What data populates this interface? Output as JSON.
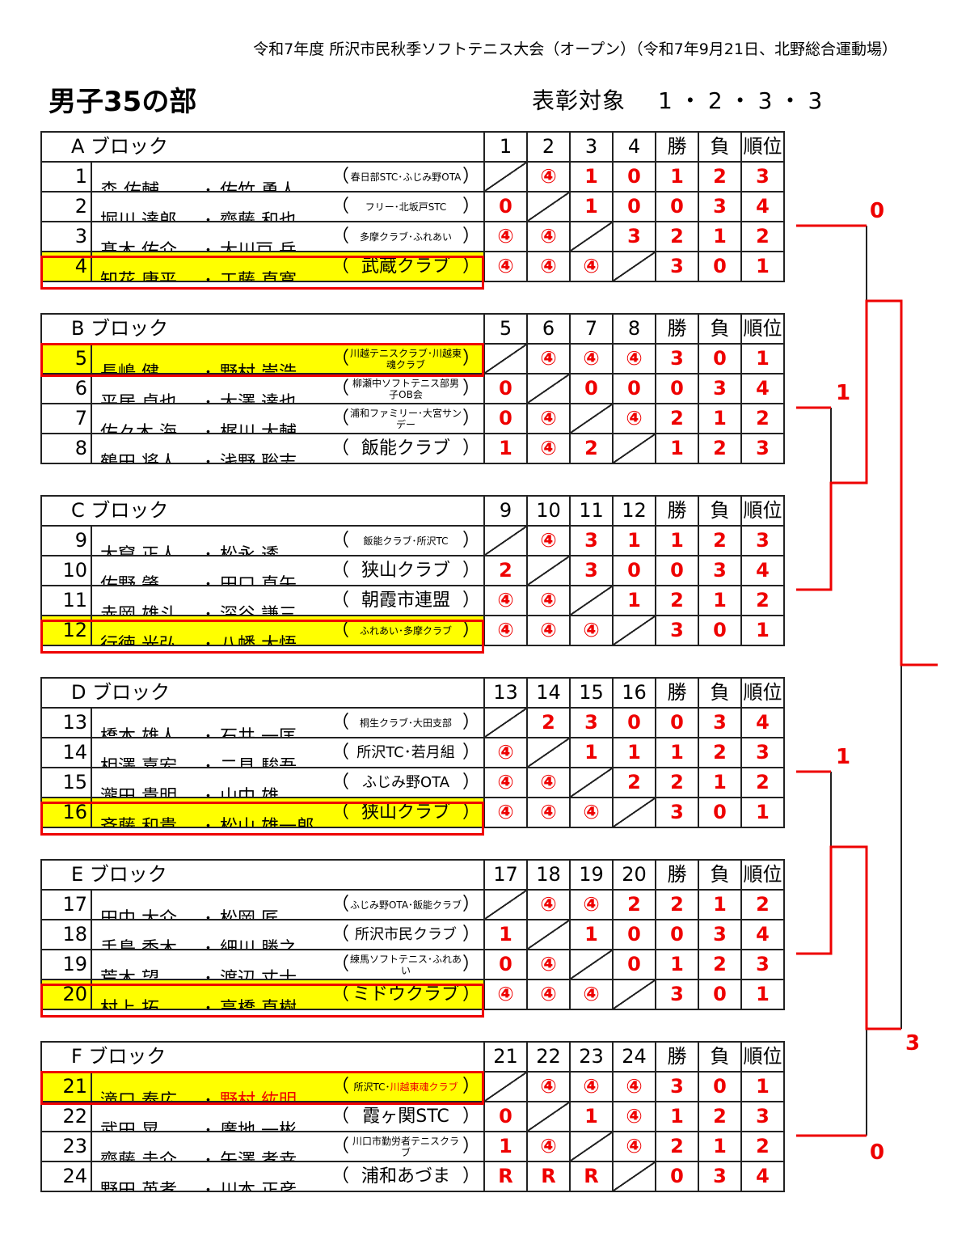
{
  "header": {
    "event": "令和7年度 所沢市民秋季ソフトテニス大会（オープン）（令和7年9月21日、北野総合運動場）",
    "division": "男子35の部",
    "award_label": "表彰対象",
    "award_ranks": "1・2・3・3"
  },
  "columns": {
    "wins": "勝",
    "losses": "負",
    "rank": "順位"
  },
  "colors": {
    "result": "#e00000",
    "highlight_fill": "#ffff00",
    "highlight_border": "#e00000"
  },
  "blocks": [
    {
      "label": "A ブロック",
      "cols": [
        "1",
        "2",
        "3",
        "4"
      ],
      "rows": [
        {
          "no": "1",
          "p1": "森 佑輔",
          "p2": "佐竹 勇人",
          "club": "春日部STC･ふじみ野OTA",
          "results": [
            null,
            "④",
            "1",
            "0"
          ],
          "w": "1",
          "l": "2",
          "rank": "3",
          "hl": false
        },
        {
          "no": "2",
          "p1": "堀川 達郎",
          "p2": "齊藤 和也",
          "club": "フリー･北坂戸STC",
          "results": [
            "0",
            null,
            "1",
            "0"
          ],
          "w": "0",
          "l": "3",
          "rank": "4",
          "hl": false
        },
        {
          "no": "3",
          "p1": "髙木 佑介",
          "p2": "大川戸 岳",
          "club": "多摩クラブ･ふれあい",
          "results": [
            "④",
            "④",
            null,
            "3"
          ],
          "w": "2",
          "l": "1",
          "rank": "2",
          "hl": false
        },
        {
          "no": "4",
          "p1": "知花 康平",
          "p2": "工藤 直寛",
          "club": "武蔵クラブ",
          "results": [
            "④",
            "④",
            "④",
            null
          ],
          "w": "3",
          "l": "0",
          "rank": "1",
          "hl": true
        }
      ]
    },
    {
      "label": "B ブロック",
      "cols": [
        "5",
        "6",
        "7",
        "8"
      ],
      "rows": [
        {
          "no": "5",
          "p1": "長嶋 健",
          "p2": "野村 崇浩",
          "club": "川越テニスクラブ･川越東魂クラブ",
          "results": [
            null,
            "④",
            "④",
            "④"
          ],
          "w": "3",
          "l": "0",
          "rank": "1",
          "hl": true
        },
        {
          "no": "6",
          "p1": "平居 卓也",
          "p2": "大澤 達也",
          "club": "柳瀬中ソフトテニス部男子OB会",
          "results": [
            "0",
            null,
            "0",
            "0"
          ],
          "w": "0",
          "l": "3",
          "rank": "4",
          "hl": false
        },
        {
          "no": "7",
          "p1": "佐々木 海",
          "p2": "梶川 大輔",
          "club": "浦和ファミリー･大宮サンデー",
          "results": [
            "0",
            "④",
            null,
            "④"
          ],
          "w": "2",
          "l": "1",
          "rank": "2",
          "hl": false
        },
        {
          "no": "8",
          "p1": "鶴田 将人",
          "p2": "浅野 聡志",
          "club": "飯能クラブ",
          "results": [
            "1",
            "④",
            "2",
            null
          ],
          "w": "1",
          "l": "2",
          "rank": "3",
          "hl": false
        }
      ]
    },
    {
      "label": "C ブロック",
      "cols": [
        "9",
        "10",
        "11",
        "12"
      ],
      "rows": [
        {
          "no": "9",
          "p1": "大窟 正人",
          "p2": "松永 透",
          "club": "飯能クラブ･所沢TC",
          "results": [
            null,
            "④",
            "3",
            "1"
          ],
          "w": "1",
          "l": "2",
          "rank": "3",
          "hl": false
        },
        {
          "no": "10",
          "p1": "佐野 肇",
          "p2": "田口 直矢",
          "club": "狭山クラブ",
          "results": [
            "2",
            null,
            "3",
            "0"
          ],
          "w": "0",
          "l": "3",
          "rank": "4",
          "hl": false
        },
        {
          "no": "11",
          "p1": "赤岡 雄斗",
          "p2": "深谷 謙三",
          "club": "朝霞市連盟",
          "results": [
            "④",
            "④",
            null,
            "1"
          ],
          "w": "2",
          "l": "1",
          "rank": "2",
          "hl": false
        },
        {
          "no": "12",
          "p1": "行徳 光弘",
          "p2": "八幡 大悟",
          "club": "ふれあい･多摩クラブ",
          "results": [
            "④",
            "④",
            "④",
            null
          ],
          "w": "3",
          "l": "0",
          "rank": "1",
          "hl": true
        }
      ]
    },
    {
      "label": "D ブロック",
      "cols": [
        "13",
        "14",
        "15",
        "16"
      ],
      "rows": [
        {
          "no": "13",
          "p1": "橋本 雄人",
          "p2": "石井 一匡",
          "club": "桐生クラブ･大田支部",
          "results": [
            null,
            "2",
            "3",
            "0"
          ],
          "w": "0",
          "l": "3",
          "rank": "4",
          "hl": false
        },
        {
          "no": "14",
          "p1": "相澤 嘉宏",
          "p2": "二見 駿吾",
          "club": "所沢TC･若月組",
          "results": [
            "④",
            null,
            "1",
            "1"
          ],
          "w": "1",
          "l": "2",
          "rank": "3",
          "hl": false
        },
        {
          "no": "15",
          "p1": "瀧田 貴明",
          "p2": "山中 雄",
          "club": "ふじみ野OTA",
          "results": [
            "④",
            "④",
            null,
            "2"
          ],
          "w": "2",
          "l": "1",
          "rank": "2",
          "hl": false
        },
        {
          "no": "16",
          "p1": "斉藤 和貴",
          "p2": "松山 雄一郎",
          "club": "狭山クラブ",
          "results": [
            "④",
            "④",
            "④",
            null
          ],
          "w": "3",
          "l": "0",
          "rank": "1",
          "hl": true
        }
      ]
    },
    {
      "label": "E ブロック",
      "cols": [
        "17",
        "18",
        "19",
        "20"
      ],
      "rows": [
        {
          "no": "17",
          "p1": "田中 大介",
          "p2": "松岡 匠",
          "club": "ふじみ野OTA･飯能クラブ",
          "results": [
            null,
            "④",
            "④",
            "2"
          ],
          "w": "2",
          "l": "1",
          "rank": "2",
          "hl": false
        },
        {
          "no": "18",
          "p1": "手島 秀木",
          "p2": "細川 勝之",
          "club": "所沢市民クラブ",
          "results": [
            "1",
            null,
            "1",
            "0"
          ],
          "w": "0",
          "l": "3",
          "rank": "4",
          "hl": false
        },
        {
          "no": "19",
          "p1": "荒木 望",
          "p2": "渡辺 丈士",
          "club": "練馬ソフトテニス･ふれあい",
          "results": [
            "0",
            "④",
            null,
            "0"
          ],
          "w": "1",
          "l": "2",
          "rank": "3",
          "hl": false
        },
        {
          "no": "20",
          "p1": "村上 拓",
          "p2": "高橋 直樹",
          "club": "ミドウクラブ",
          "results": [
            "④",
            "④",
            "④",
            null
          ],
          "w": "3",
          "l": "0",
          "rank": "1",
          "hl": true
        }
      ]
    },
    {
      "label": "F ブロック",
      "cols": [
        "21",
        "22",
        "23",
        "24"
      ],
      "rows": [
        {
          "no": "21",
          "p1": "滝口 泰広",
          "p2": "野村 紘明",
          "p2_red": true,
          "club": "所沢TC･",
          "club_red": "川越東魂クラブ",
          "results": [
            null,
            "④",
            "④",
            "④"
          ],
          "w": "3",
          "l": "0",
          "rank": "1",
          "hl": true
        },
        {
          "no": "22",
          "p1": "武田 晃",
          "p2": "廣地 一彬",
          "club": "霞ヶ関STC",
          "results": [
            "0",
            null,
            "1",
            "④"
          ],
          "w": "1",
          "l": "2",
          "rank": "3",
          "hl": false
        },
        {
          "no": "23",
          "p1": "齋藤 圭介",
          "p2": "矢澤 孝幸",
          "club": "川口市勤労者テニスクラブ",
          "results": [
            "1",
            "④",
            null,
            "④"
          ],
          "w": "2",
          "l": "1",
          "rank": "2",
          "hl": false
        },
        {
          "no": "24",
          "p1": "野田 英孝",
          "p2": "川本 正彦",
          "club": "浦和あづま",
          "results": [
            "R",
            "R",
            "R",
            null
          ],
          "w": "0",
          "l": "3",
          "rank": "4",
          "hl": false
        }
      ]
    }
  ],
  "bracket": {
    "scores": [
      "0",
      "1",
      "1",
      "3",
      "0"
    ]
  }
}
